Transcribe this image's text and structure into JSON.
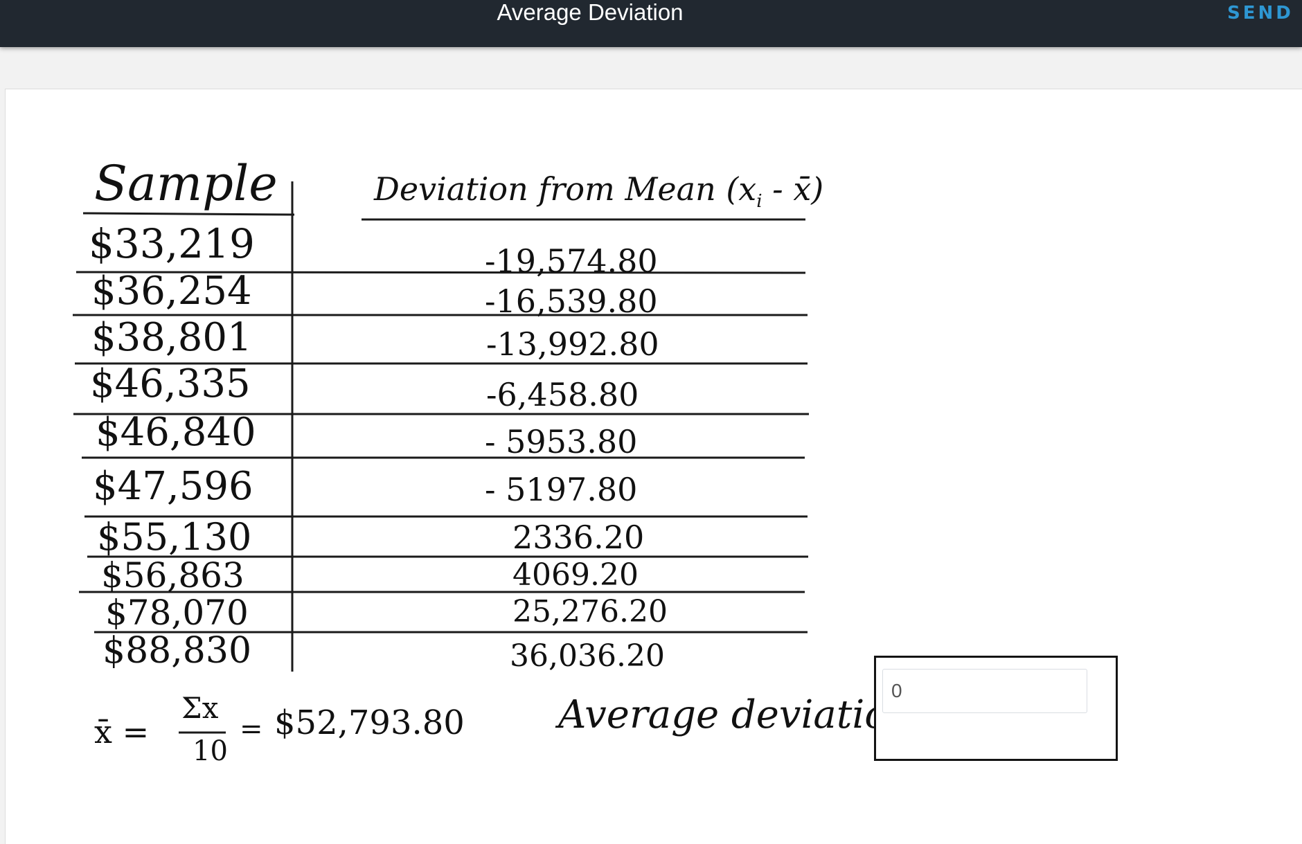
{
  "header": {
    "title": "Average Deviation",
    "send_label": "SEND F"
  },
  "worksheet": {
    "sample_header": "Sample",
    "deviation_header": "Deviation from Mean (x",
    "deviation_header_sub": "i",
    "deviation_header_tail": " - x̄)",
    "rows": [
      {
        "sample": "$33,219",
        "deviation": "-19,574.80"
      },
      {
        "sample": "$36,254",
        "deviation": "-16,539.80"
      },
      {
        "sample": "$38,801",
        "deviation": "-13,992.80"
      },
      {
        "sample": "$46,335",
        "deviation": "-6,458.80"
      },
      {
        "sample": "$46,840",
        "deviation": "- 5953.80"
      },
      {
        "sample": "$47,596",
        "deviation": "- 5197.80"
      },
      {
        "sample": "$55,130",
        "deviation": "2336.20"
      },
      {
        "sample": "$56,863",
        "deviation": "4069.20"
      },
      {
        "sample": "$78,070",
        "deviation": "25,276.20"
      },
      {
        "sample": "$88,830",
        "deviation": "36,036.20"
      }
    ],
    "mean_symbol": "x̄ =",
    "mean_numerator": "Σx",
    "mean_denominator": "10",
    "mean_equals": "=",
    "mean_value": "$52,793.80",
    "avg_dev_label": "Average deviation =",
    "answer_value": "0"
  }
}
